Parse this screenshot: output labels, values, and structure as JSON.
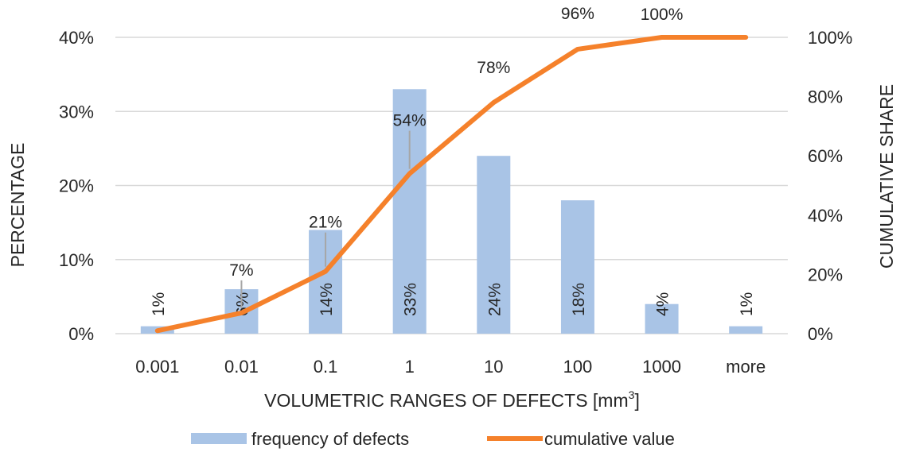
{
  "chart_data": {
    "type": "bar",
    "categories": [
      "0.001",
      "0.01",
      "0.1",
      "1",
      "10",
      "100",
      "1000",
      "more"
    ],
    "series": [
      {
        "name": "frequency of defects",
        "axis": "left",
        "type": "bar",
        "values": [
          1,
          6,
          14,
          33,
          24,
          18,
          4,
          1
        ],
        "labels": [
          "1%",
          "6%",
          "14%",
          "33%",
          "24%",
          "18%",
          "4%",
          "1%"
        ],
        "color": "#a9c4e6"
      },
      {
        "name": "cumulative value",
        "axis": "right",
        "type": "line",
        "values": [
          1,
          7,
          21,
          54,
          78,
          96,
          100,
          100
        ],
        "labels": [
          "",
          "7%",
          "21%",
          "54%",
          "78%",
          "96%",
          "100%",
          ""
        ],
        "color": "#f5812b"
      }
    ],
    "xlabel_main": "VOLUMETRIC RANGES OF DEFECTS [mm",
    "xlabel_sup": "3",
    "xlabel_end": "]",
    "ylabel": "PERCENTAGE",
    "ylabel_right": "CUMULATIVE SHARE",
    "ylim": [
      0,
      40
    ],
    "ylim_right": [
      0,
      100
    ],
    "yticks": [
      "0%",
      "10%",
      "20%",
      "30%",
      "40%"
    ],
    "yticks_right": [
      "0%",
      "20%",
      "40%",
      "60%",
      "80%",
      "100%"
    ],
    "grid": true,
    "legend_position": "bottom",
    "gridline_color": "#d9d9d9",
    "leader_color": "#a6a6a6"
  }
}
